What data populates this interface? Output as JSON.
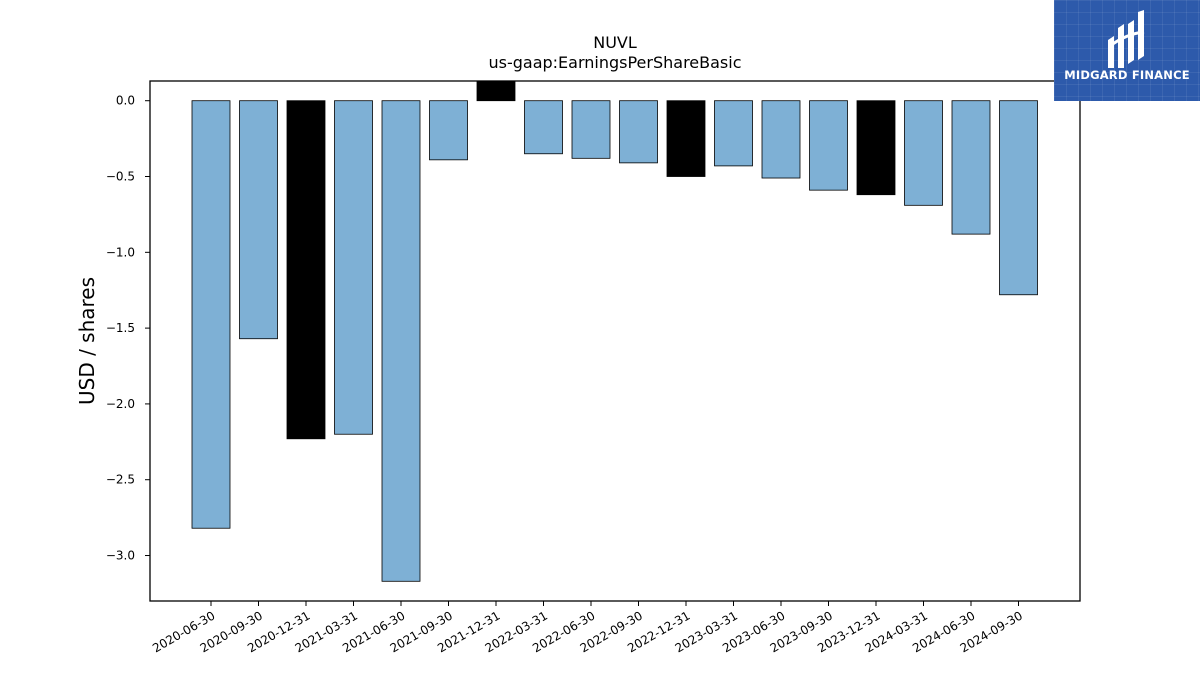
{
  "chart_data": {
    "type": "bar",
    "title": "NUVL",
    "subtitle": "us-gaap:EarningsPerShareBasic",
    "xlabel": "",
    "ylabel": "USD / shares",
    "ylim": [
      -3.3,
      0.13
    ],
    "yticks": [
      0.0,
      -0.5,
      -1.0,
      -1.5,
      -2.0,
      -2.5,
      -3.0
    ],
    "ytick_labels": [
      "0.0",
      "−0.5",
      "−1.0",
      "−1.5",
      "−2.0",
      "−2.5",
      "−3.0"
    ],
    "categories": [
      "2020-06-30",
      "2020-09-30",
      "2020-12-31",
      "2021-03-31",
      "2021-06-30",
      "2021-09-30",
      "2021-12-31",
      "2022-03-31",
      "2022-06-30",
      "2022-09-30",
      "2022-12-31",
      "2023-03-31",
      "2023-06-30",
      "2023-09-30",
      "2023-12-31",
      "2024-03-31",
      "2024-06-30",
      "2024-09-30"
    ],
    "values": [
      -2.82,
      -1.57,
      -2.23,
      -2.2,
      -3.17,
      -0.39,
      0.13,
      -0.35,
      -0.38,
      -0.41,
      -0.5,
      -0.43,
      -0.51,
      -0.59,
      -0.62,
      -0.69,
      -0.88,
      -1.28
    ],
    "bar_colors": [
      "#7eb0d5",
      "#7eb0d5",
      "#000000",
      "#7eb0d5",
      "#7eb0d5",
      "#7eb0d5",
      "#000000",
      "#7eb0d5",
      "#7eb0d5",
      "#7eb0d5",
      "#000000",
      "#7eb0d5",
      "#7eb0d5",
      "#7eb0d5",
      "#000000",
      "#7eb0d5",
      "#7eb0d5",
      "#7eb0d5"
    ],
    "grid": false,
    "legend": "none"
  },
  "logo": {
    "text": "MIDGARD FINANCE",
    "background": "#2d5aab"
  }
}
